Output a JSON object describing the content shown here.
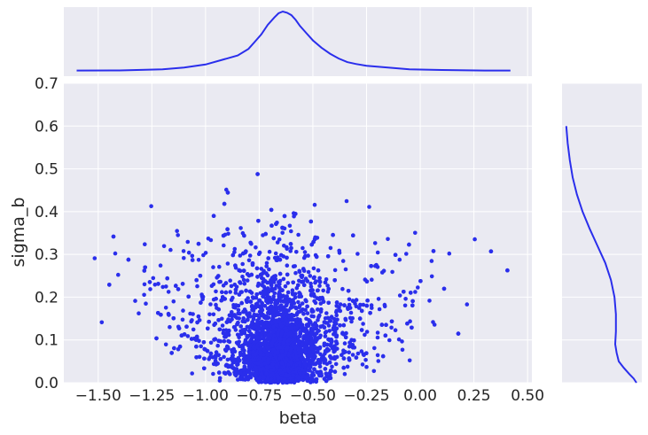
{
  "chart_data": {
    "type": "scatter",
    "subtype": "jointplot-with-marginal-kde",
    "xlabel": "beta",
    "ylabel": "sigma_b",
    "xlim": [
      -1.66,
      0.52
    ],
    "ylim": [
      0.0,
      0.7
    ],
    "x_ticks": [
      -1.5,
      -1.25,
      -1.0,
      -0.75,
      -0.5,
      -0.25,
      0.0,
      0.25,
      0.5
    ],
    "x_tick_labels": [
      "−1.50",
      "−1.25",
      "−1.00",
      "−0.75",
      "−0.50",
      "−0.25",
      "0.00",
      "0.25",
      "0.50"
    ],
    "y_ticks": [
      0.0,
      0.1,
      0.2,
      0.3,
      0.4,
      0.5,
      0.6,
      0.7
    ],
    "y_tick_labels": [
      "0.0",
      "0.1",
      "0.2",
      "0.3",
      "0.4",
      "0.5",
      "0.6",
      "0.7"
    ],
    "grid": true,
    "color": "#2a2eec",
    "background": "#eaeaf2",
    "marginal_x_kde": {
      "x": [
        -1.6,
        -1.4,
        -1.2,
        -1.1,
        -1.0,
        -0.92,
        -0.85,
        -0.8,
        -0.77,
        -0.74,
        -0.71,
        -0.68,
        -0.66,
        -0.64,
        -0.62,
        -0.6,
        -0.58,
        -0.56,
        -0.53,
        -0.5,
        -0.46,
        -0.42,
        -0.38,
        -0.34,
        -0.3,
        -0.25,
        -0.15,
        -0.05,
        0.1,
        0.3,
        0.42
      ],
      "density": [
        0.02,
        0.022,
        0.04,
        0.07,
        0.12,
        0.2,
        0.27,
        0.38,
        0.5,
        0.62,
        0.78,
        0.9,
        0.97,
        1.0,
        0.98,
        0.94,
        0.86,
        0.76,
        0.64,
        0.52,
        0.4,
        0.3,
        0.22,
        0.16,
        0.13,
        0.1,
        0.07,
        0.04,
        0.03,
        0.02,
        0.02
      ]
    },
    "marginal_y_kde": {
      "y": [
        0.0,
        0.01,
        0.02,
        0.035,
        0.05,
        0.07,
        0.09,
        0.12,
        0.16,
        0.2,
        0.24,
        0.28,
        0.32,
        0.36,
        0.4,
        0.44,
        0.48,
        0.52,
        0.56,
        0.6
      ],
      "density": [
        1.0,
        0.96,
        0.9,
        0.82,
        0.75,
        0.72,
        0.7,
        0.71,
        0.71,
        0.69,
        0.64,
        0.56,
        0.45,
        0.34,
        0.24,
        0.16,
        0.1,
        0.06,
        0.03,
        0.01
      ]
    },
    "points_summary": {
      "n_approx": 4000,
      "x_center": -0.65,
      "x_spread": 0.22,
      "y_mode": 0.1,
      "y_max": 0.6
    }
  }
}
